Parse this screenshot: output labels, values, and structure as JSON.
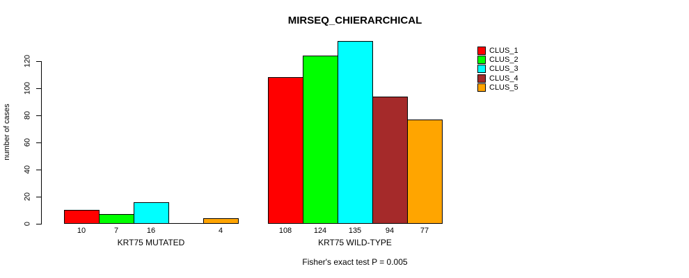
{
  "chart_data": {
    "type": "bar",
    "title": "MIRSEQ_CHIERARCHICAL",
    "xlabel": "",
    "ylabel": "number of cases",
    "categories": [
      "KRT75 MUTATED",
      "KRT75 WILD-TYPE"
    ],
    "series": [
      {
        "name": "CLUS_1",
        "color": "#FF0000",
        "values": [
          10,
          108
        ]
      },
      {
        "name": "CLUS_2",
        "color": "#00FF00",
        "values": [
          7,
          124
        ]
      },
      {
        "name": "CLUS_3",
        "color": "#00FFFF",
        "values": [
          16,
          135
        ]
      },
      {
        "name": "CLUS_4",
        "color": "#A52A2A",
        "values": [
          0,
          94
        ]
      },
      {
        "name": "CLUS_5",
        "color": "#FFA500",
        "values": [
          4,
          77
        ]
      }
    ],
    "bar_value_labels": [
      [
        "10",
        "7",
        "16",
        "",
        "4"
      ],
      [
        "108",
        "124",
        "135",
        "94",
        "77"
      ]
    ],
    "yticks": [
      0,
      20,
      40,
      60,
      80,
      100,
      120
    ],
    "ylim": [
      0,
      136
    ],
    "grid": false,
    "legend": {
      "position": "top-right",
      "entries": [
        "CLUS_1",
        "CLUS_2",
        "CLUS_3",
        "CLUS_4",
        "CLUS_5"
      ]
    },
    "caption": "Fisher's exact test P = 0.005"
  },
  "colors": {
    "background": "#FFFFFF",
    "axis": "#000000",
    "text": "#000000"
  }
}
